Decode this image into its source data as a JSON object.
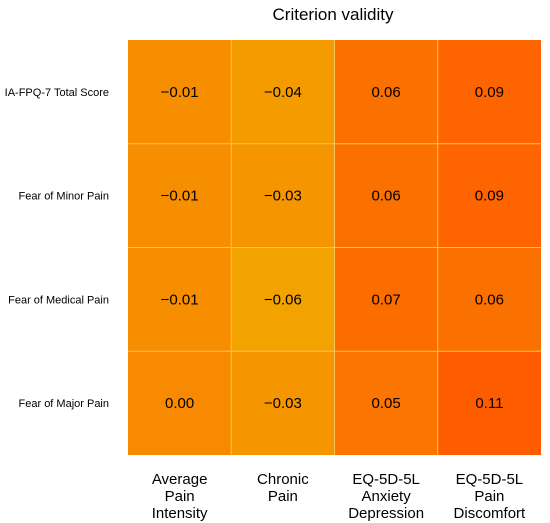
{
  "chart_data": {
    "type": "heatmap",
    "title": "Criterion validity",
    "rows": [
      "IA-FPQ-7 Total Score",
      "Fear of Minor Pain",
      "Fear of Medical Pain",
      "Fear of Major Pain"
    ],
    "columns": [
      [
        "Average",
        "Pain",
        "Intensity"
      ],
      [
        "Chronic",
        "Pain"
      ],
      [
        "EQ-5D-5L",
        "Anxiety",
        "Depression"
      ],
      [
        "EQ-5D-5L",
        "Pain",
        "Discomfort"
      ]
    ],
    "values": [
      [
        -0.01,
        -0.04,
        0.06,
        0.09
      ],
      [
        -0.01,
        -0.03,
        0.06,
        0.09
      ],
      [
        -0.01,
        -0.06,
        0.07,
        0.06
      ],
      [
        0.0,
        -0.03,
        0.05,
        0.11
      ]
    ],
    "value_labels": [
      [
        "−0.01",
        "−0.04",
        "0.06",
        "0.09"
      ],
      [
        "−0.01",
        "−0.03",
        "0.06",
        "0.09"
      ],
      [
        "−0.01",
        "−0.06",
        "0.07",
        "0.06"
      ],
      [
        "0.00",
        "−0.03",
        "0.05",
        "0.11"
      ]
    ],
    "color_scale": {
      "low": "#f3a300",
      "high": "#ff5c00"
    },
    "grid_line_color": "#f7c25a",
    "legend": "none"
  }
}
